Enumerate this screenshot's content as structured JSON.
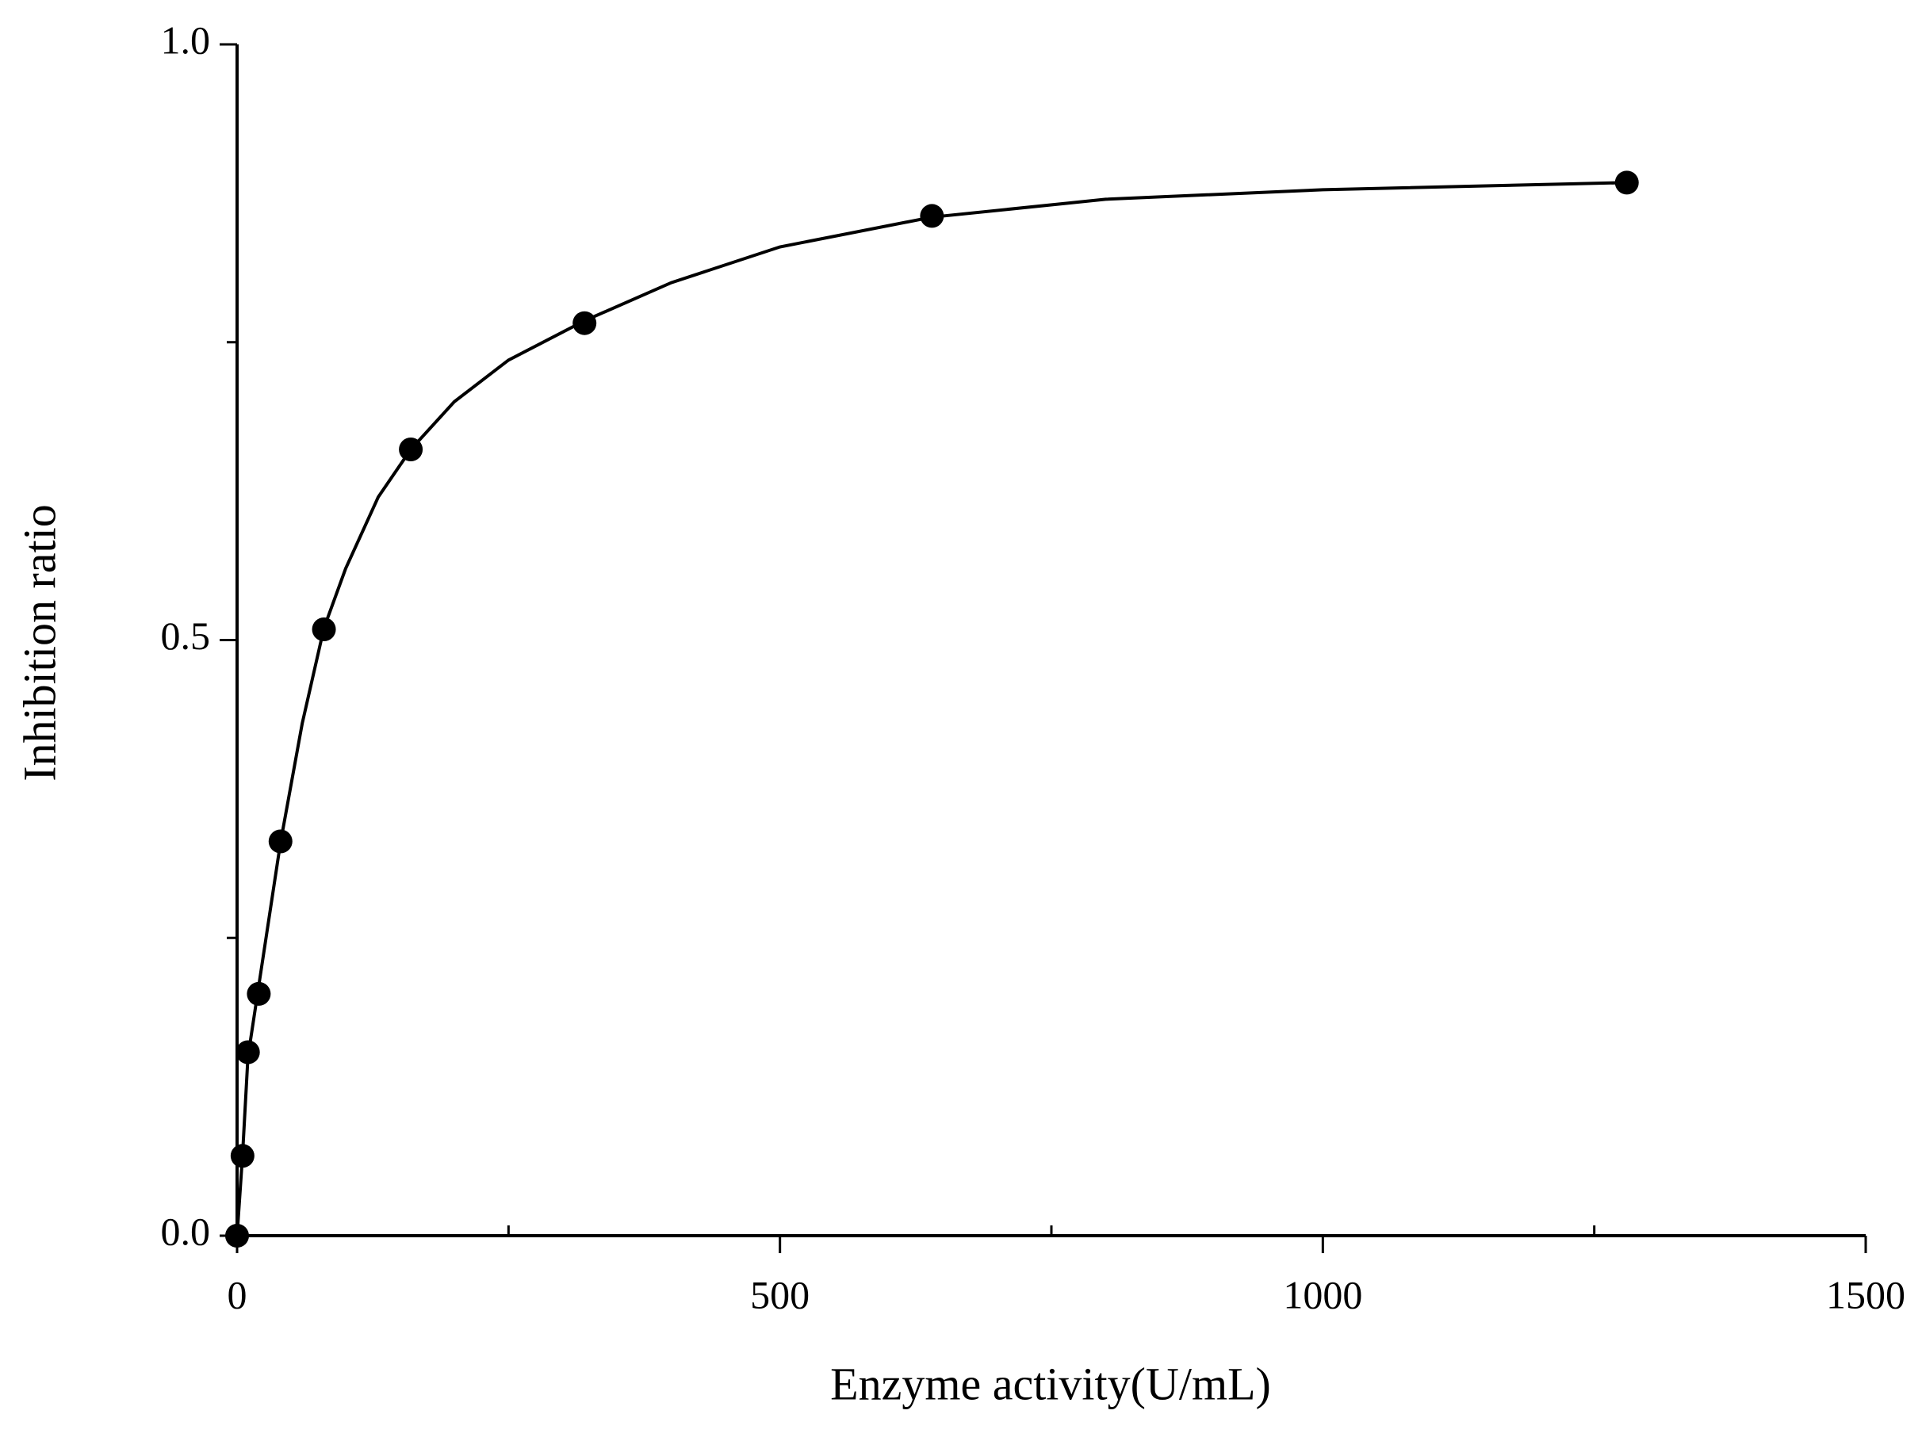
{
  "chart_data": {
    "type": "scatter",
    "x_label": "Enzyme activity(U/mL)",
    "y_label": "Inhibition ratio",
    "series": [
      {
        "color": "#000000",
        "x": [
          0,
          5,
          10,
          20,
          40,
          80,
          160,
          320,
          640,
          1280
        ],
        "values": [
          0,
          0.067,
          0.154,
          0.203,
          0.331,
          0.509,
          0.66,
          0.766,
          0.856,
          0.884
        ]
      }
    ],
    "fit": {
      "color": "#000000",
      "x": [
        0,
        5,
        10,
        20,
        40,
        60,
        80,
        100,
        130,
        160,
        200,
        250,
        320,
        400,
        500,
        640,
        800,
        1000,
        1280
      ],
      "values": [
        0,
        0.067,
        0.15,
        0.21,
        0.33,
        0.43,
        0.51,
        0.56,
        0.62,
        0.66,
        0.7,
        0.735,
        0.768,
        0.8,
        0.83,
        0.855,
        0.87,
        0.878,
        0.884
      ]
    },
    "xlim": [
      0,
      1500
    ],
    "ylim": [
      0,
      1
    ],
    "xticks": [
      0,
      500,
      1000,
      1500
    ],
    "xminor": [
      250,
      750,
      1250
    ],
    "yticks": [
      {
        "value": 0,
        "label": "0.0"
      },
      {
        "value": 0.5,
        "label": "0.5"
      },
      {
        "value": 1,
        "label": "1.0"
      }
    ],
    "yminor": [
      0.25,
      0.75
    ]
  }
}
